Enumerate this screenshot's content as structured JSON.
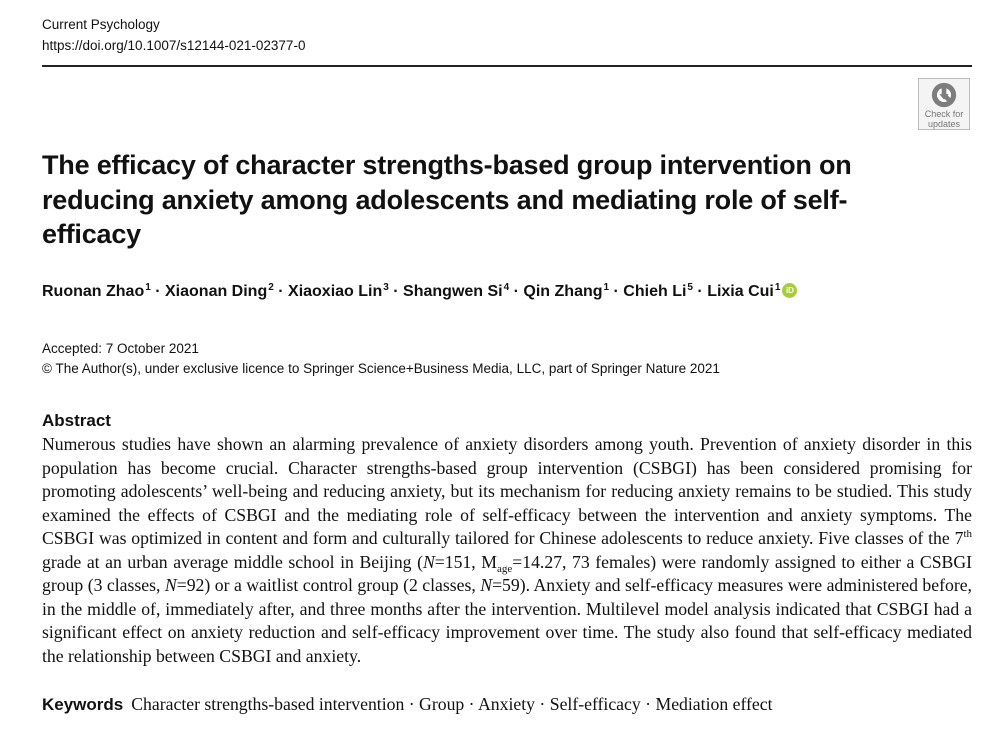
{
  "journal": {
    "name": "Current Psychology",
    "doi": "https://doi.org/10.1007/s12144-021-02377-0"
  },
  "badge": {
    "line1": "Check for",
    "line2": "updates",
    "icon": "check-for-updates-icon"
  },
  "title": "The efficacy of character strengths-based group intervention on reducing anxiety among adolescents and mediating role of self-efficacy",
  "authors": [
    {
      "name": "Ruonan Zhao",
      "aff": "1"
    },
    {
      "name": "Xiaonan Ding",
      "aff": "2"
    },
    {
      "name": "Xiaoxiao Lin",
      "aff": "3"
    },
    {
      "name": "Shangwen Si",
      "aff": "4"
    },
    {
      "name": "Qin Zhang",
      "aff": "1"
    },
    {
      "name": "Chieh Li",
      "aff": "5"
    },
    {
      "name": "Lixia Cui",
      "aff": "1"
    }
  ],
  "author_separator": " · ",
  "orcid": {
    "label": "iD",
    "icon": "orcid-icon",
    "color": "#a6ce39"
  },
  "accepted": "Accepted: 7 October 2021",
  "copyright": "© The Author(s), under exclusive licence to Springer Science+Business Media, LLC, part of Springer Nature 2021",
  "abstract": {
    "heading": "Abstract",
    "p1": "Numerous studies have shown an alarming prevalence of anxiety disorders among youth. Prevention of anxiety disorder in this population has become crucial. Character strengths-based group intervention (CSBGI) has been considered promising for promoting adolescents’ well-being and reducing anxiety, but its mechanism for reducing anxiety remains to be studied. This study examined the effects of CSBGI and the mediating role of self-efficacy between the intervention and anxiety symptoms. The CSBGI was optimized in content and form and culturally tailored for Chinese adolescents to reduce anxiety. Five classes of the 7",
    "th": "th",
    "p2": " grade at an urban average middle school in Beijing (",
    "N": "N",
    "n1": "=151, M",
    "age": "age",
    "p3": "=14.27, 73 females) were randomly assigned to either a CSBGI group (3 classes, ",
    "n2": "=92) or a waitlist control group (2 classes, ",
    "n3": "=59). Anxiety and self-efficacy measures were administered before, in the middle of, immediately after, and three months after the intervention. Multilevel model analysis indicated that CSBGI had a significant effect on anxiety reduction and self-efficacy improvement over time. The study also found that self-efficacy mediated the relationship between CSBGI and anxiety."
  },
  "keywords": {
    "label": "Keywords",
    "list": "Character strengths-based intervention · Group · Anxiety · Self-efficacy · Mediation effect"
  }
}
